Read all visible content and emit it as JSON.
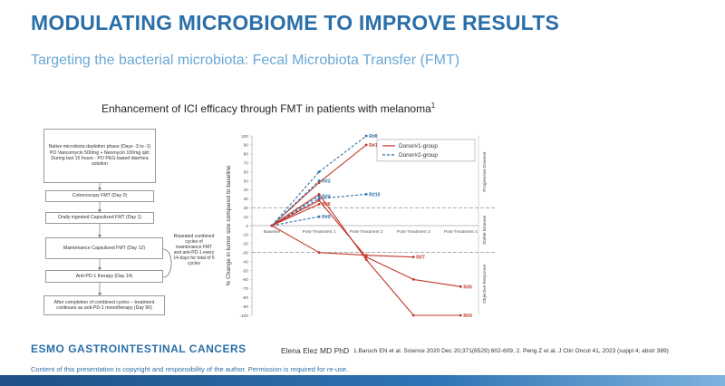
{
  "title": "MODULATING MICROBIOME TO IMPROVE RESULTS",
  "subtitle": "Targeting the bacterial microbiota: Fecal Microbiota Transfer (FMT)",
  "caption": "Enhancement of ICI efficacy through FMT in patients with melanoma",
  "caption_sup": "1",
  "flowchart": {
    "box1": "Native microbiota depletion phase (Days -3 to -1) PO Vancomycin 500mg + Neomycin 100mg qid; During last 15 hours - PO PEG-based diarrhea solution",
    "box2": "Colonoscopy FMT (Day 0)",
    "box3": "Orally ingested Capsulized FMT (Day 1)",
    "box4": "Maintenance Capsulized FMT (Day 12)",
    "box5": "Anti-PD-1 therapy (Day 14)",
    "box6": "After completion of combined cycles – treatment continues as anti-PD-1 monotherapy (Day 90)",
    "note": "Repeated combined cycles of maintenance FMT and anti-PD-1 every 14 days for total of 6 cycles"
  },
  "chart_data": {
    "type": "line",
    "ylabel": "% Change in tumor size compared to baseline",
    "ylim": [
      -100,
      100
    ],
    "yticks": [
      100,
      90,
      80,
      70,
      60,
      50,
      40,
      30,
      20,
      10,
      0,
      -10,
      -20,
      -30,
      -40,
      -50,
      -60,
      -70,
      -80,
      -90,
      -100
    ],
    "categories": [
      "Baseline",
      "Post-Treatment 1",
      "Post-Treatment 2",
      "Post-Treatment 3",
      "Post-Treatment 4"
    ],
    "reference_lines": [
      20,
      -30
    ],
    "zones": [
      "Progressive Disease",
      "Stable Disease",
      "Objective Response"
    ],
    "legend": [
      "Donor#1-group",
      "Donor#2-group"
    ],
    "series": [
      {
        "name": "R#1",
        "group": "Donor#1-group",
        "values": [
          0,
          48,
          90,
          null,
          null
        ]
      },
      {
        "name": "R#8",
        "group": "Donor#2-group",
        "values": [
          0,
          60,
          100,
          null,
          null
        ]
      },
      {
        "name": "R#2",
        "group": "Donor#2-group",
        "values": [
          0,
          50,
          null,
          null,
          null
        ]
      },
      {
        "name": "R#4",
        "group": "Donor#2-group",
        "values": [
          0,
          33,
          null,
          null,
          null
        ]
      },
      {
        "name": "R#10",
        "group": "Donor#2-group",
        "values": [
          0,
          30,
          35,
          null,
          null
        ]
      },
      {
        "name": "R#6",
        "group": "Donor#1-group",
        "values": [
          0,
          24,
          null,
          null,
          null
        ]
      },
      {
        "name": "R#9",
        "group": "Donor#2-group",
        "values": [
          0,
          10,
          null,
          null,
          null
        ]
      },
      {
        "name": "R#7",
        "group": "Donor#1-group",
        "values": [
          0,
          -30,
          -33,
          -35,
          null
        ]
      },
      {
        "name": "R#5",
        "group": "Donor#1-group",
        "values": [
          0,
          28,
          -35,
          -60,
          -68
        ]
      },
      {
        "name": "R#3",
        "group": "Donor#1-group",
        "values": [
          0,
          35,
          -38,
          -100,
          -100
        ]
      }
    ],
    "colors": {
      "Donor#1-group": "#c0392b",
      "Donor#2-group": "#2e6fa8"
    }
  },
  "footer": {
    "logo_prefix": "ESMO",
    "logo_text": "GASTROINTESTINAL CANCERS",
    "author": "Elena Elez MD PhD",
    "references": "1.Baruch EN et al. Science 2020 Dec 20;371(6529):602-609, 2. Peng Z et al. J Clin Oncol 41, 2023 (suppl 4; abstr 389)",
    "copyright": "Content of this presentation is copyright and responsibility of the author. Permission is required for re-use."
  }
}
